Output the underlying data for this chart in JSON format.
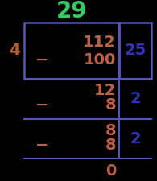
{
  "title": "29",
  "title_color": "#33cc66",
  "divisor": "4",
  "divisor_color": "#b85c2a",
  "bg_color": "#000000",
  "box_color": "#5555bb",
  "number_color": "#c06040",
  "partial_color": "#3333bb",
  "line_color": "#5555bb",
  "minus_color": "#c06040",
  "figsize": [
    1.95,
    2.25
  ],
  "dpi": 100,
  "title_fs": 20,
  "num_fs": 14,
  "partial_fs": 14,
  "divisor_fs": 14
}
